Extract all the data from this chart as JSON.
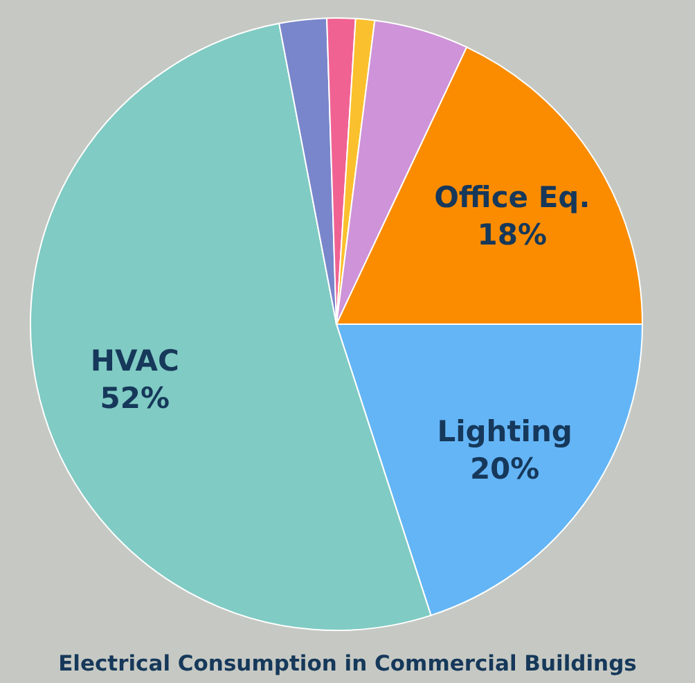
{
  "chart_data": {
    "type": "pie",
    "title": "Electrical Consumption in Commercial Buildings",
    "categories": [
      "Lighting",
      "HVAC",
      null,
      null,
      null,
      null,
      "Office Eq."
    ],
    "values": [
      20,
      52,
      2.5,
      1.5,
      1,
      5,
      18
    ],
    "colors": [
      "#64b5f6",
      "#80cbc4",
      "#7986cb",
      "#f06292",
      "#fbc02d",
      "#ce93d8",
      "#fb8c00"
    ],
    "value_labels": [
      "20%",
      "52%",
      null,
      null,
      null,
      null,
      "18%"
    ]
  }
}
